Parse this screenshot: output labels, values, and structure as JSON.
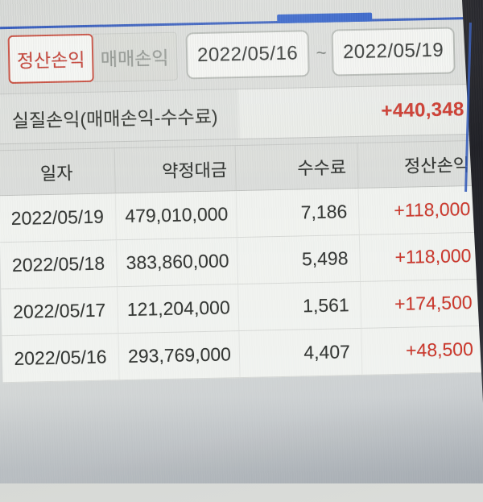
{
  "colors": {
    "accent_blue": "#2b54ba",
    "accent_red": "#cd372b",
    "active_tab_border": "#c74b3c",
    "row_bg": "#f1f3f0",
    "header_bg": "#dcdedb"
  },
  "tabs": [
    {
      "label": "정산손익",
      "active": true
    },
    {
      "label": "매매손익",
      "active": false
    }
  ],
  "date_range": {
    "from": "2022/05/16",
    "separator": "~",
    "to": "2022/05/19"
  },
  "summary": {
    "label": "실질손익(매매손익-수수료)",
    "value": "+440,348"
  },
  "table": {
    "headers": [
      "일자",
      "약정대금",
      "수수료",
      "정산손익"
    ],
    "rows": [
      {
        "date": "2022/05/19",
        "amount": "479,010,000",
        "fee": "7,186",
        "pnl": "+118,000"
      },
      {
        "date": "2022/05/18",
        "amount": "383,860,000",
        "fee": "5,498",
        "pnl": "+118,000"
      },
      {
        "date": "2022/05/17",
        "amount": "121,204,000",
        "fee": "1,561",
        "pnl": "+174,500"
      },
      {
        "date": "2022/05/16",
        "amount": "293,769,000",
        "fee": "4,407",
        "pnl": "+48,500"
      }
    ]
  }
}
